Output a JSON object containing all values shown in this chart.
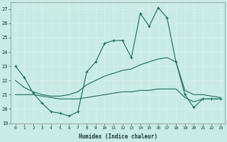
{
  "xlabel": "Humidex (Indice chaleur)",
  "xlim": [
    -0.5,
    23.5
  ],
  "ylim": [
    19,
    27.5
  ],
  "yticks": [
    19,
    20,
    21,
    22,
    23,
    24,
    25,
    26,
    27
  ],
  "xticks": [
    0,
    1,
    2,
    3,
    4,
    5,
    6,
    7,
    8,
    9,
    10,
    11,
    12,
    13,
    14,
    15,
    16,
    17,
    18,
    19,
    20,
    21,
    22,
    23
  ],
  "background_color": "#c8ebe8",
  "grid_color": "#b0d8d4",
  "line_color": "#1a6b5a",
  "series": {
    "max": [
      23.0,
      22.2,
      21.1,
      20.4,
      19.8,
      19.7,
      19.5,
      19.8,
      22.6,
      23.3,
      24.6,
      24.8,
      24.8,
      23.6,
      26.7,
      25.8,
      27.1,
      26.4,
      23.3,
      21.0,
      20.1,
      20.7,
      20.7,
      20.7
    ],
    "mean": [
      22.0,
      21.5,
      21.2,
      21.0,
      20.9,
      20.9,
      21.0,
      21.2,
      21.7,
      22.0,
      22.3,
      22.5,
      22.7,
      22.8,
      23.1,
      23.3,
      23.5,
      23.6,
      23.3,
      21.3,
      21.0,
      21.0,
      20.9,
      20.8
    ],
    "min": [
      21.0,
      21.0,
      21.0,
      20.9,
      20.8,
      20.7,
      20.7,
      20.7,
      20.8,
      20.9,
      21.0,
      21.1,
      21.2,
      21.2,
      21.3,
      21.3,
      21.4,
      21.4,
      21.4,
      20.8,
      20.5,
      20.7,
      20.7,
      20.7
    ]
  }
}
